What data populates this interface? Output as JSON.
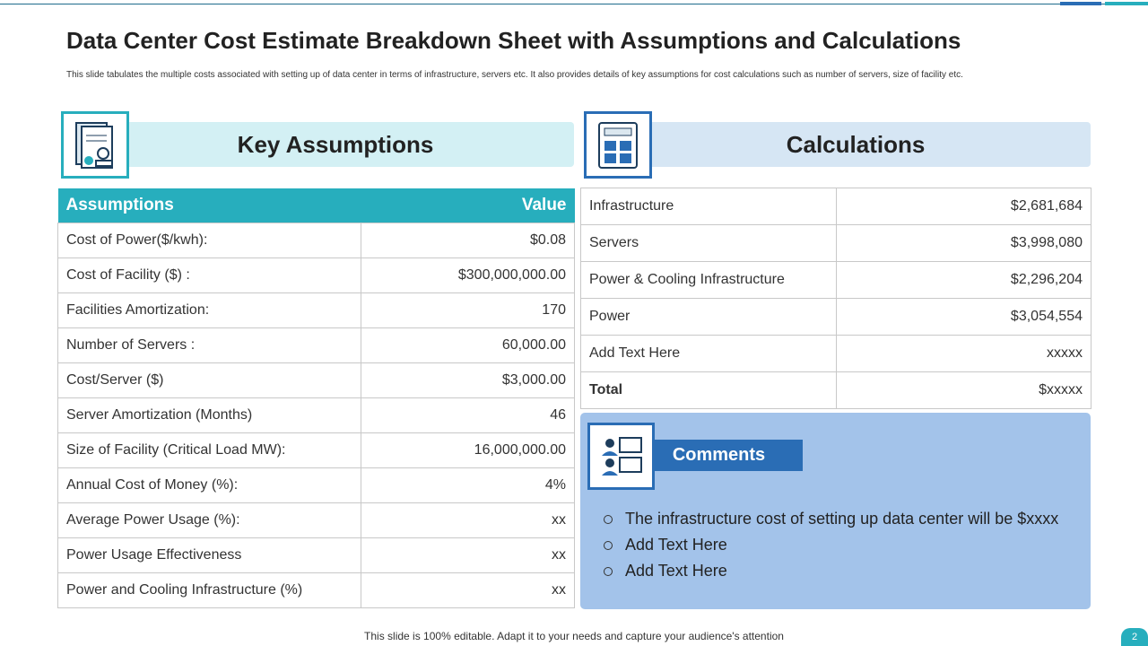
{
  "title": "Data Center Cost Estimate Breakdown Sheet with Assumptions and Calculations",
  "subtitle": "This slide tabulates the multiple  costs associated with setting up of data center in terms of infrastructure, servers etc. It also provides details of key assumptions for cost calculations such as number of servers, size of facility etc.",
  "key_assumptions": {
    "heading": "Key Assumptions",
    "columns": [
      "Assumptions",
      "Value"
    ],
    "rows": [
      [
        "Cost of Power($/kwh):",
        "$0.08"
      ],
      [
        "Cost of Facility ($) :",
        "$300,000,000.00"
      ],
      [
        "Facilities Amortization:",
        "170"
      ],
      [
        "Number of Servers :",
        "60,000.00"
      ],
      [
        "Cost/Server ($)",
        "$3,000.00"
      ],
      [
        "Server Amortization (Months)",
        "46"
      ],
      [
        "Size of Facility (Critical Load MW):",
        "16,000,000.00"
      ],
      [
        "Annual  Cost of Money (%):",
        "4%"
      ],
      [
        "Average Power Usage (%):",
        "xx"
      ],
      [
        "Power Usage Effectiveness",
        "xx"
      ],
      [
        "Power and Cooling Infrastructure  (%)",
        "xx"
      ]
    ]
  },
  "calculations": {
    "heading": "Calculations",
    "rows": [
      [
        "Infrastructure",
        "$2,681,684"
      ],
      [
        "Servers",
        "$3,998,080"
      ],
      [
        "Power & Cooling Infrastructure",
        "$2,296,204"
      ],
      [
        "Power",
        "$3,054,554"
      ],
      [
        "Add Text Here",
        "xxxxx"
      ],
      [
        "Total",
        "$xxxxx"
      ]
    ]
  },
  "comments": {
    "heading": "Comments",
    "items": [
      "The infrastructure cost of setting up data center will be $xxxx",
      "Add Text Here",
      "Add Text Here"
    ]
  },
  "footer": "This slide is 100% editable. Adapt it to your needs and capture your audience's attention",
  "page_number": "2"
}
